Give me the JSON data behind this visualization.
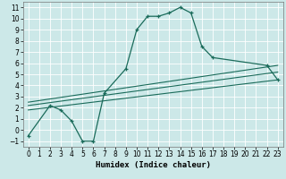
{
  "xlabel": "Humidex (Indice chaleur)",
  "background_color": "#cce8e8",
  "grid_color": "#ffffff",
  "line_color": "#1a6b5a",
  "xlim": [
    -0.5,
    23.5
  ],
  "ylim": [
    -1.5,
    11.5
  ],
  "line1_x": [
    0,
    2,
    3,
    4,
    5,
    6,
    7,
    9,
    10,
    11,
    12,
    13,
    14,
    15,
    16,
    17,
    22,
    23
  ],
  "line1_y": [
    -0.5,
    2.2,
    1.8,
    0.8,
    -1.0,
    -1.0,
    3.3,
    5.5,
    9.0,
    10.2,
    10.2,
    10.5,
    11.0,
    10.5,
    7.5,
    6.5,
    5.8,
    4.5
  ],
  "line2_x": [
    0,
    23
  ],
  "line2_y": [
    1.8,
    4.5
  ],
  "line3_x": [
    0,
    23
  ],
  "line3_y": [
    2.2,
    5.2
  ],
  "line4_x": [
    0,
    23
  ],
  "line4_y": [
    2.5,
    5.8
  ]
}
